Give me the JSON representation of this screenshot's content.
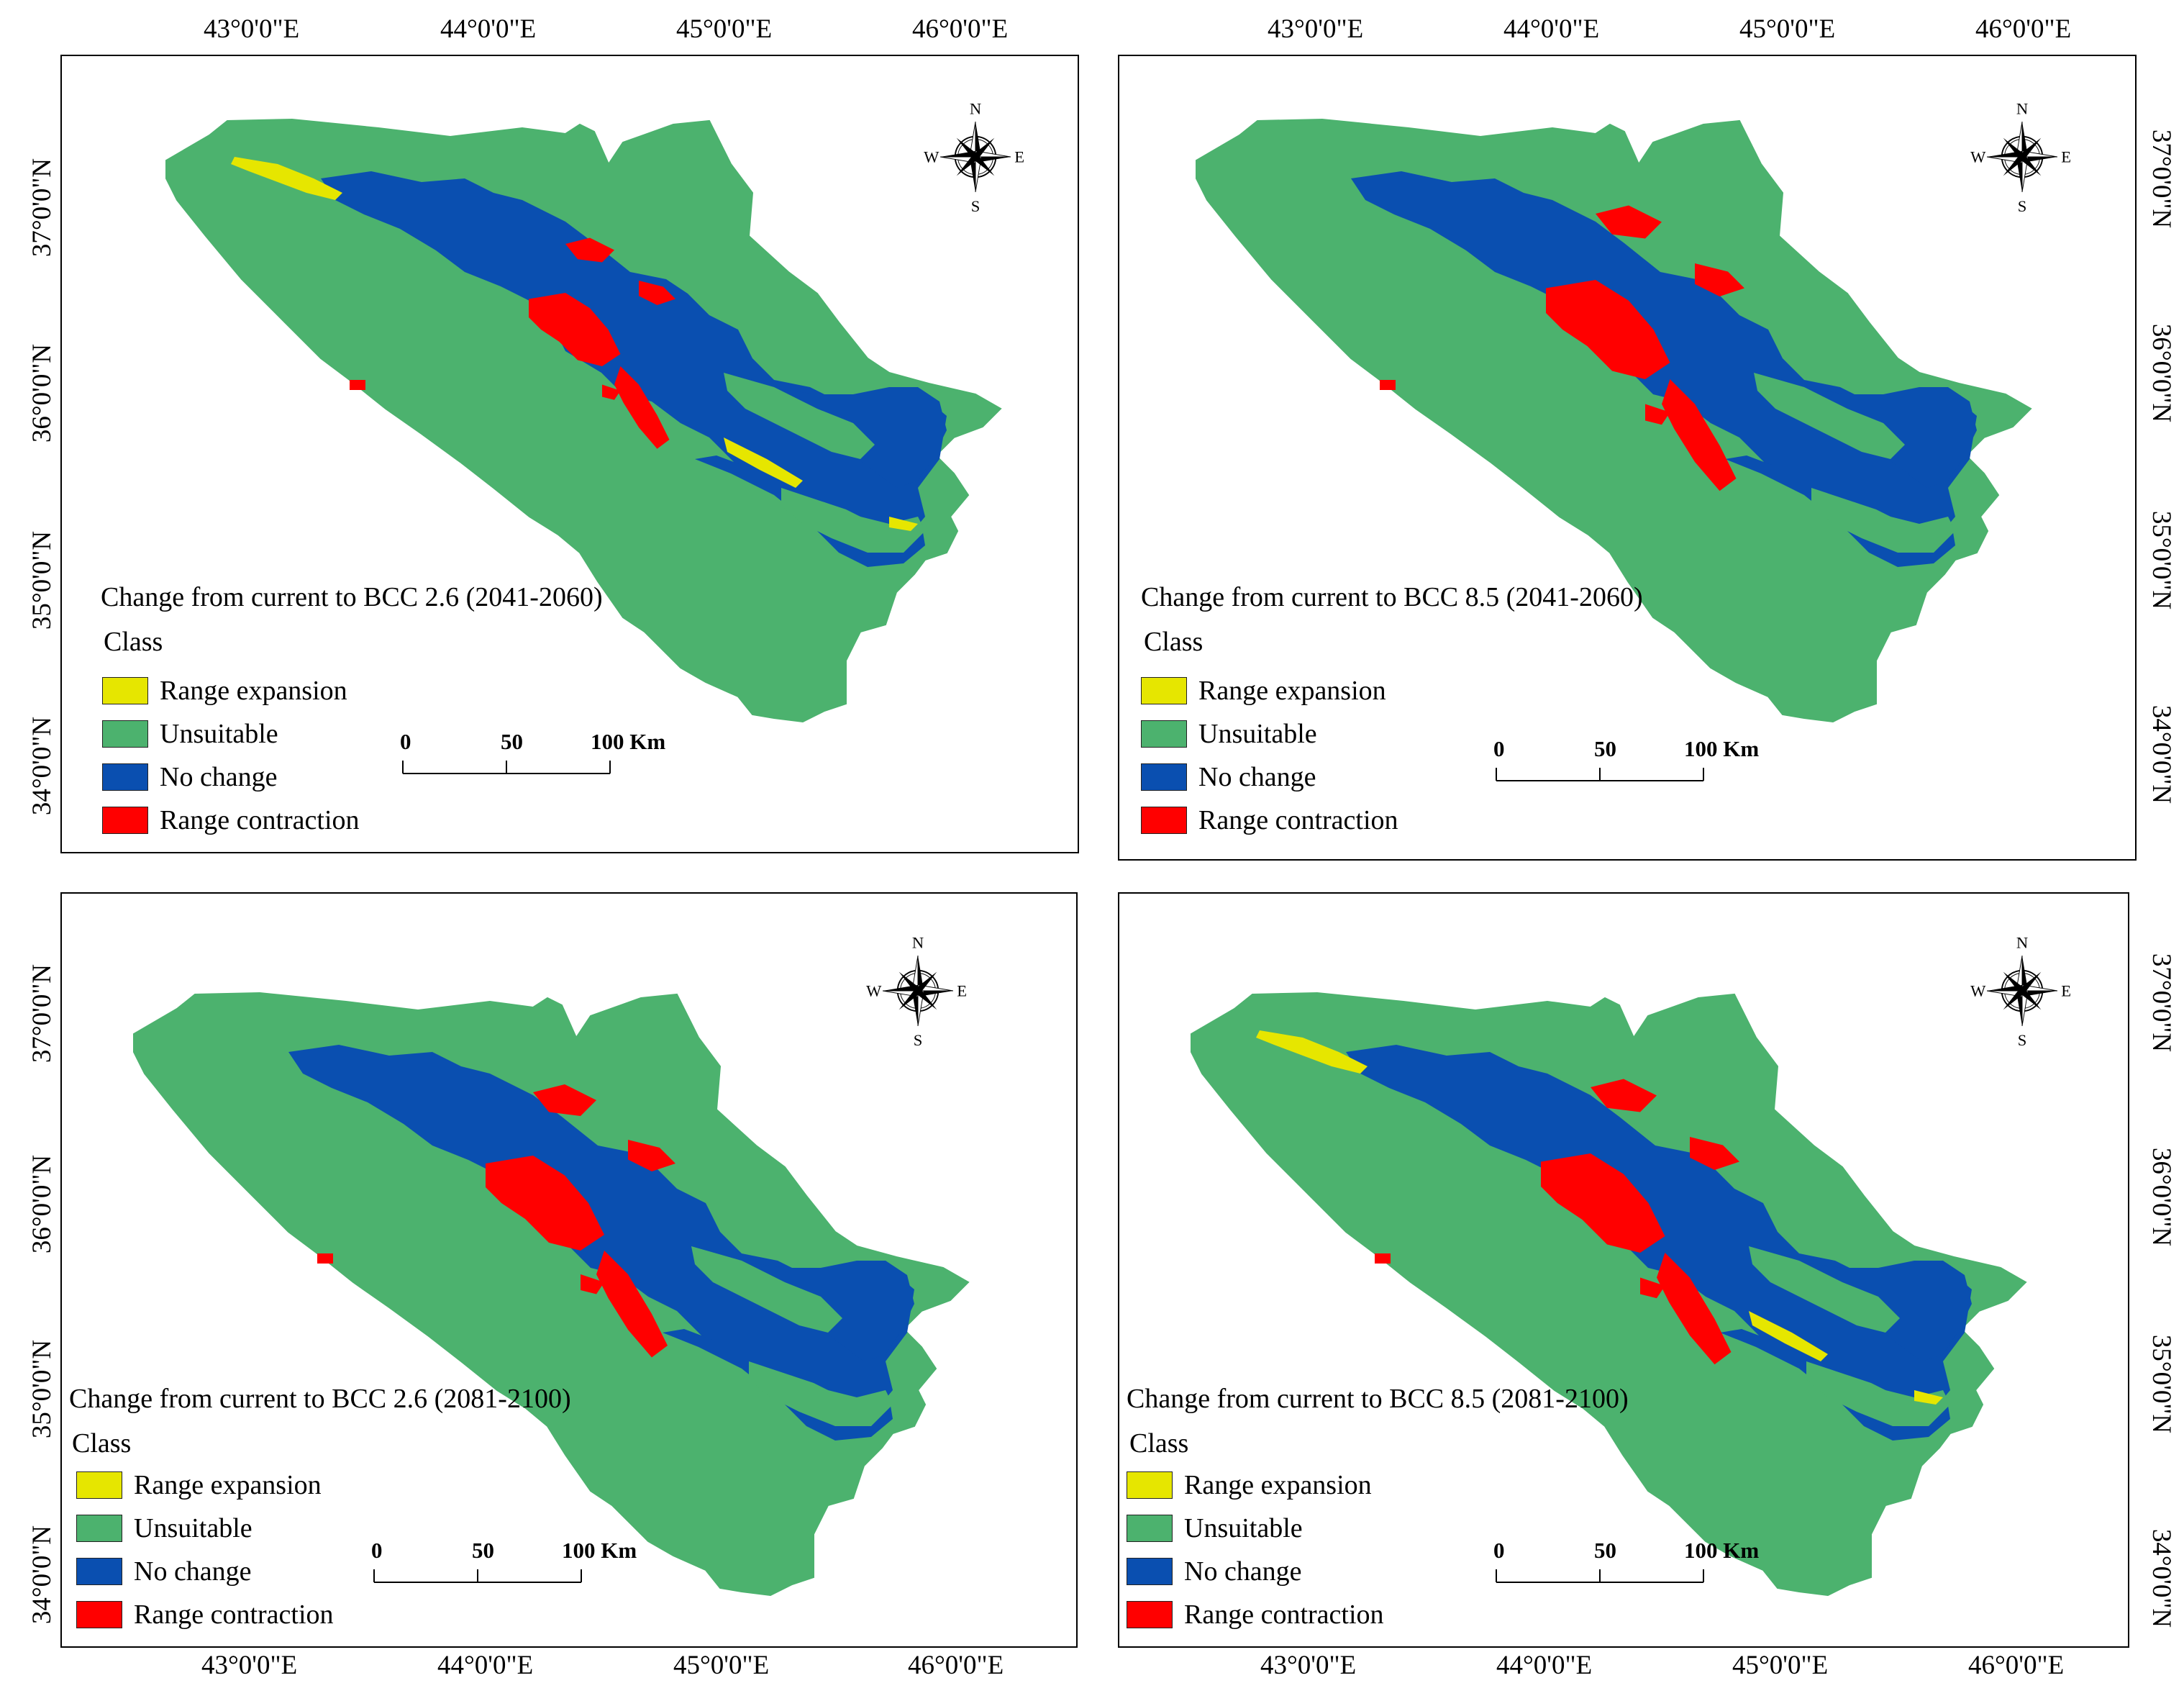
{
  "figure": {
    "x_labels_top": [
      "43°0'0\"E",
      "44°0'0\"E",
      "45°0'0\"E",
      "46°0'0\"E"
    ],
    "x_labels_bottom": [
      "43°0'0\"E",
      "44°0'0\"E",
      "45°0'0\"E",
      "46°0'0\"E"
    ],
    "y_labels_left_top": [
      "37°0'0\"N",
      "36°0'0\"N",
      "35°0'0\"N",
      "34°0'0\"N"
    ],
    "y_labels_right_top": [
      "37°0'0\"N",
      "36°0'0\"N",
      "35°0'0\"N",
      "34°0'0\"N"
    ],
    "y_labels_left_bottom": [
      "37°0'0\"N",
      "36°0'0\"N",
      "35°0'0\"N",
      "34°0'0\"N"
    ],
    "y_labels_right_bottom": [
      "37°0'0\"N",
      "36°0'0\"N",
      "35°0'0\"N",
      "34°0'0\"N"
    ]
  },
  "colors": {
    "range_expansion": "#e6e600",
    "unsuitable": "#4cb26e",
    "no_change": "#0a4fb0",
    "range_contraction": "#ff0000"
  },
  "legend": {
    "class_label": "Class",
    "items": [
      "Range expansion",
      "Unsuitable",
      "No change",
      "Range contraction"
    ]
  },
  "scalebar": {
    "labels": [
      "0",
      "50",
      "100 Km"
    ]
  },
  "compass": {
    "n": "N",
    "s": "S",
    "e": "E",
    "w": "W"
  },
  "panels": [
    {
      "title": "Change from current to BCC 2.6 (2041-2060)"
    },
    {
      "title": "Change from current to BCC 8.5  (2041-2060)"
    },
    {
      "title": "Change from current to BCC 2.6 (2081-2100)"
    },
    {
      "title": "Change from current to BCC 8.5 (2081-2100)"
    }
  ]
}
